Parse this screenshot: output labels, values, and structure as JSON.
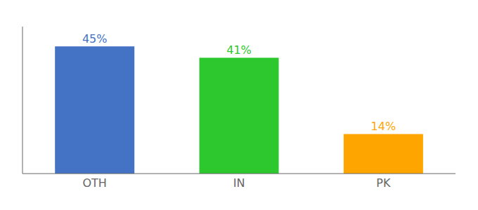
{
  "chart_data": {
    "type": "bar",
    "categories": [
      "OTH",
      "IN",
      "PK"
    ],
    "values": [
      45,
      41,
      14
    ],
    "value_labels": [
      "45%",
      "41%",
      "14%"
    ],
    "colors": [
      "#4472C4",
      "#2DC82D",
      "#FFA500"
    ],
    "ylim": [
      0,
      52
    ],
    "data_labels": true,
    "tick_labels": "x",
    "grid": false
  }
}
